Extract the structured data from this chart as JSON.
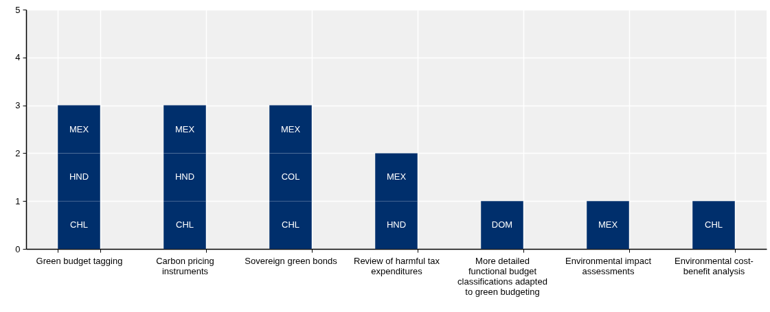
{
  "chart_data": {
    "type": "bar",
    "stacked": true,
    "grid": true,
    "categories": [
      "Green budget tagging",
      "Carbon pricing instruments",
      "Sovereign green bonds",
      "Review of harmful tax expenditures",
      "More detailed functional budget classifications adapted to green budgeting",
      "Environmental impact assessments",
      "Environmental cost-benefit analysis"
    ],
    "ylim": [
      0,
      5
    ],
    "yticks": [
      0,
      1,
      2,
      3,
      4,
      5
    ],
    "series": [
      {
        "color": "#002f6c",
        "values": [
          1,
          1,
          1,
          1,
          1,
          1,
          1
        ],
        "value_labels": [
          "CHL",
          "CHL",
          "CHL",
          "HND",
          "DOM",
          "MEX",
          "CHL"
        ]
      },
      {
        "color": "#002f6c",
        "values": [
          1,
          1,
          1,
          1,
          null,
          null,
          null
        ],
        "value_labels": [
          "HND",
          "HND",
          "COL",
          "MEX",
          null,
          null,
          null
        ]
      },
      {
        "color": "#002f6c",
        "values": [
          1,
          1,
          1,
          null,
          null,
          null,
          null
        ],
        "value_labels": [
          "MEX",
          "MEX",
          "MEX",
          null,
          null,
          null,
          null
        ]
      }
    ]
  }
}
